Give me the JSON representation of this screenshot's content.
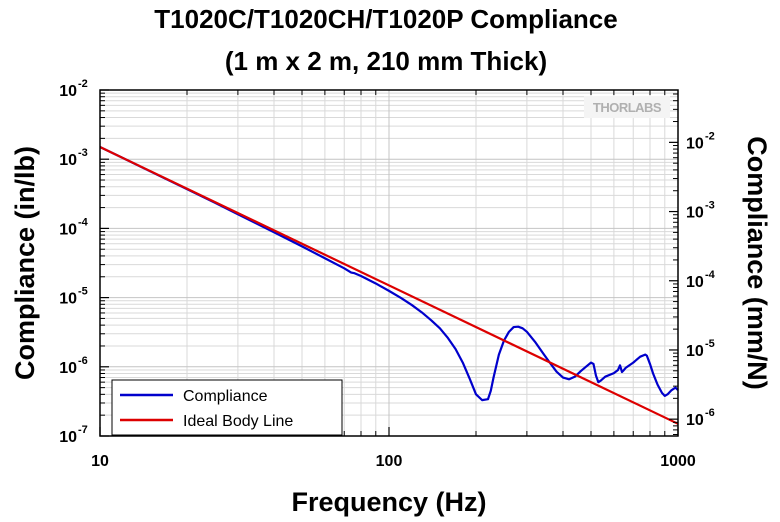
{
  "chart_data": {
    "type": "line",
    "title_line1": "T1020C/T1020CH/T1020P Compliance",
    "title_line2": "(1 m x 2 m, 210 mm Thick)",
    "xlabel": "Frequency (Hz)",
    "ylabel": "Compliance (in/lb)",
    "y2label": "Compliance (mm/N)",
    "x_scale": "log",
    "y_scale": "log",
    "xlim": [
      10,
      1000
    ],
    "ylim": [
      1e-07,
      0.01
    ],
    "y2lim": [
      5.71e-07,
      0.0571
    ],
    "grid": true,
    "legend_position": "bottom-left",
    "x_tick_labels": [
      "10",
      "100",
      "1000"
    ],
    "y_ticks": [
      {
        "base": "10",
        "exp": "-7"
      },
      {
        "base": "10",
        "exp": "-6"
      },
      {
        "base": "10",
        "exp": "-5"
      },
      {
        "base": "10",
        "exp": "-4"
      },
      {
        "base": "10",
        "exp": "-3"
      },
      {
        "base": "10",
        "exp": "-2"
      }
    ],
    "y2_ticks": [
      {
        "base": "10",
        "exp": "-6"
      },
      {
        "base": "10",
        "exp": "-5"
      },
      {
        "base": "10",
        "exp": "-4"
      },
      {
        "base": "10",
        "exp": "-3"
      },
      {
        "base": "10",
        "exp": "-2"
      }
    ],
    "series": [
      {
        "name": "Compliance",
        "color": "#0000cc",
        "x": [
          10,
          12,
          15,
          20,
          25,
          30,
          40,
          50,
          60,
          70,
          74,
          76,
          80,
          90,
          100,
          110,
          120,
          130,
          140,
          150,
          160,
          170,
          180,
          190,
          200,
          210,
          220,
          225,
          230,
          240,
          250,
          260,
          270,
          280,
          290,
          300,
          320,
          340,
          360,
          380,
          400,
          420,
          440,
          460,
          480,
          500,
          510,
          520,
          530,
          540,
          560,
          600,
          620,
          630,
          640,
          650,
          660,
          700,
          740,
          770,
          780,
          800,
          820,
          850,
          880,
          900,
          920,
          950,
          980,
          1000
        ],
        "y": [
          0.0015,
          0.00104,
          0.00066,
          0.00037,
          0.000235,
          0.00016,
          8.8e-05,
          5.5e-05,
          3.7e-05,
          2.65e-05,
          2.3e-05,
          2.25e-05,
          2.05e-05,
          1.6e-05,
          1.25e-05,
          9.9e-06,
          7.8e-06,
          6.1e-06,
          4.7e-06,
          3.6e-06,
          2.6e-06,
          1.8e-06,
          1.15e-06,
          6.8e-07,
          4e-07,
          3.3e-07,
          3.4e-07,
          4.5e-07,
          7e-07,
          1.5e-06,
          2.4e-06,
          3.2e-06,
          3.75e-06,
          3.8e-06,
          3.6e-06,
          3.2e-06,
          2.3e-06,
          1.6e-06,
          1.15e-06,
          8.5e-07,
          7e-07,
          6.6e-07,
          7.2e-07,
          8.6e-07,
          1e-06,
          1.15e-06,
          1.1e-06,
          7.5e-07,
          6e-07,
          6.3e-07,
          7.2e-07,
          8.1e-07,
          9e-07,
          1.05e-06,
          8.4e-07,
          9e-07,
          9.7e-07,
          1.15e-06,
          1.4e-06,
          1.5e-06,
          1.45e-06,
          1.1e-06,
          8e-07,
          5.5e-07,
          4.2e-07,
          3.8e-07,
          4e-07,
          4.6e-07,
          5e-07,
          4.6e-07
        ]
      },
      {
        "name": "Ideal Body Line",
        "color": "#dd0000",
        "x": [
          10,
          1000
        ],
        "y": [
          0.0015,
          1.5e-07
        ]
      }
    ],
    "logo": "THORLABS"
  }
}
